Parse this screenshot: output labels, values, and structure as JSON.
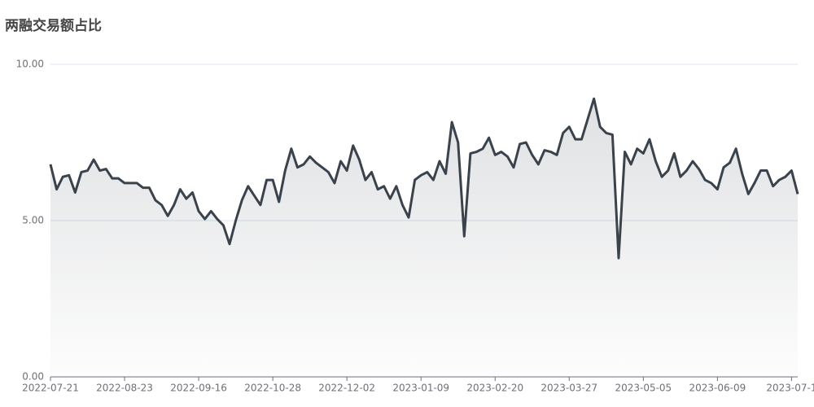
{
  "chart_data": {
    "type": "area",
    "title": "两融交易额占比",
    "color": "#3a424c",
    "ylim": [
      0,
      10
    ],
    "yticks": [
      {
        "value": 0,
        "label": "0.00"
      },
      {
        "value": 5,
        "label": "5.00"
      },
      {
        "value": 10,
        "label": "10.00"
      }
    ],
    "grid": true,
    "categories": [
      "2022-07-21",
      null,
      null,
      null,
      null,
      null,
      null,
      null,
      null,
      null,
      null,
      null,
      "2022-08-23",
      null,
      null,
      null,
      null,
      null,
      null,
      null,
      null,
      null,
      null,
      null,
      "2022-09-16",
      null,
      null,
      null,
      null,
      null,
      null,
      null,
      null,
      null,
      null,
      null,
      "2022-10-28",
      null,
      null,
      null,
      null,
      null,
      null,
      null,
      null,
      null,
      null,
      null,
      "2022-12-02",
      null,
      null,
      null,
      null,
      null,
      null,
      null,
      null,
      null,
      null,
      null,
      "2023-01-09",
      null,
      null,
      null,
      null,
      null,
      null,
      null,
      null,
      null,
      null,
      null,
      "2023-02-20",
      null,
      null,
      null,
      null,
      null,
      null,
      null,
      null,
      null,
      null,
      null,
      "2023-03-27",
      null,
      null,
      null,
      null,
      null,
      null,
      null,
      null,
      null,
      null,
      null,
      "2023-05-05",
      null,
      null,
      null,
      null,
      null,
      null,
      null,
      null,
      null,
      null,
      null,
      "2023-06-09",
      null,
      null,
      null,
      null,
      null,
      null,
      null,
      null,
      null,
      null,
      null,
      "2023-07-1",
      null
    ],
    "values": [
      6.8,
      6.0,
      6.4,
      6.45,
      5.9,
      6.55,
      6.6,
      6.95,
      6.6,
      6.65,
      6.35,
      6.35,
      6.2,
      6.2,
      6.2,
      6.05,
      6.05,
      5.65,
      5.5,
      5.15,
      5.5,
      6.0,
      5.7,
      5.9,
      5.3,
      5.05,
      5.3,
      5.05,
      4.85,
      4.25,
      5.0,
      5.65,
      6.1,
      5.8,
      5.5,
      6.3,
      6.3,
      5.6,
      6.6,
      7.3,
      6.7,
      6.8,
      7.05,
      6.85,
      6.7,
      6.55,
      6.2,
      6.9,
      6.6,
      7.4,
      6.95,
      6.3,
      6.55,
      6.0,
      6.1,
      5.7,
      6.1,
      5.5,
      5.1,
      6.3,
      6.45,
      6.55,
      6.3,
      6.9,
      6.5,
      8.15,
      7.5,
      4.5,
      7.15,
      7.2,
      7.3,
      7.65,
      7.1,
      7.2,
      7.05,
      6.7,
      7.45,
      7.5,
      7.1,
      6.8,
      7.25,
      7.2,
      7.1,
      7.8,
      8.0,
      7.6,
      7.6,
      8.25,
      8.9,
      8.0,
      7.8,
      7.75,
      3.8,
      7.2,
      6.8,
      7.3,
      7.15,
      7.6,
      6.9,
      6.4,
      6.6,
      7.15,
      6.4,
      6.6,
      6.9,
      6.65,
      6.3,
      6.2,
      6.0,
      6.7,
      6.85,
      7.3,
      6.5,
      5.85,
      6.2,
      6.6,
      6.6,
      6.1,
      6.3,
      6.4,
      6.6,
      5.85
    ]
  }
}
